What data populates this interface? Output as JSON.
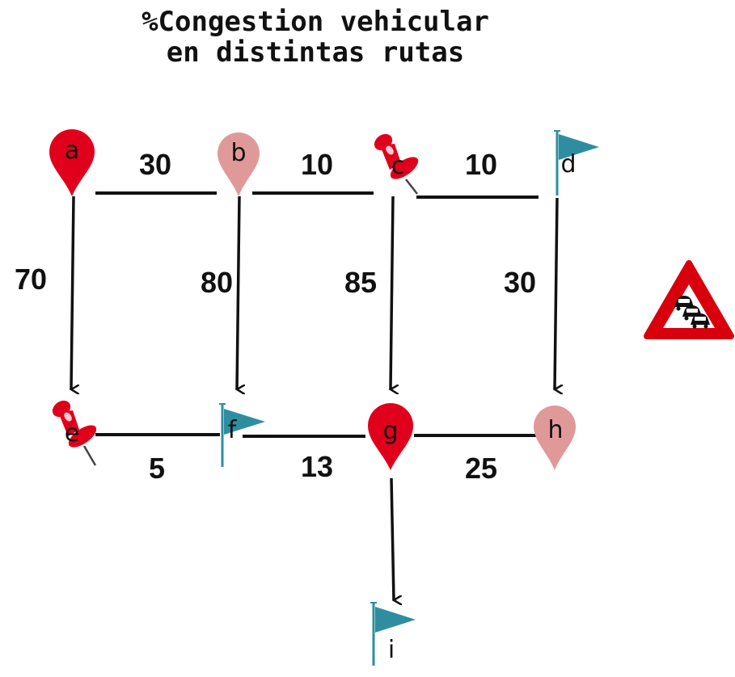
{
  "title": {
    "line1": "%Congestion vehicular",
    "line2": "en distintas rutas"
  },
  "colors": {
    "pin_red": "#e0001b",
    "pin_pink": "#e09999",
    "flag_teal": "#2e8ea0",
    "edge": "#111111",
    "warning_red": "#d8000c"
  },
  "nodes": [
    {
      "id": "a",
      "label": "a",
      "icon": "map-pin-red"
    },
    {
      "id": "b",
      "label": "b",
      "icon": "map-pin-pink"
    },
    {
      "id": "c",
      "label": "c",
      "icon": "pushpin-red"
    },
    {
      "id": "d",
      "label": "d",
      "icon": "flag-teal"
    },
    {
      "id": "e",
      "label": "e",
      "icon": "pushpin-red"
    },
    {
      "id": "f",
      "label": "f",
      "icon": "flag-teal"
    },
    {
      "id": "g",
      "label": "g",
      "icon": "map-pin-red"
    },
    {
      "id": "h",
      "label": "h",
      "icon": "map-pin-pink"
    },
    {
      "id": "i",
      "label": "i",
      "icon": "flag-teal"
    }
  ],
  "edges": [
    {
      "from": "a",
      "to": "b",
      "label": "30",
      "directed": false
    },
    {
      "from": "b",
      "to": "c",
      "label": "10",
      "directed": false
    },
    {
      "from": "c",
      "to": "d",
      "label": "10",
      "directed": false
    },
    {
      "from": "a",
      "to": "e",
      "label": "70",
      "directed": true
    },
    {
      "from": "b",
      "to": "f",
      "label": "80",
      "directed": true
    },
    {
      "from": "c",
      "to": "g",
      "label": "85",
      "directed": true
    },
    {
      "from": "d",
      "to": "h",
      "label": "30",
      "directed": true
    },
    {
      "from": "e",
      "to": "f",
      "label": "5",
      "directed": false
    },
    {
      "from": "f",
      "to": "g",
      "label": "13",
      "directed": false
    },
    {
      "from": "g",
      "to": "h",
      "label": "25",
      "directed": false
    },
    {
      "from": "g",
      "to": "i",
      "label": "",
      "directed": true
    }
  ],
  "warning_icon": "traffic-jam-warning-icon"
}
